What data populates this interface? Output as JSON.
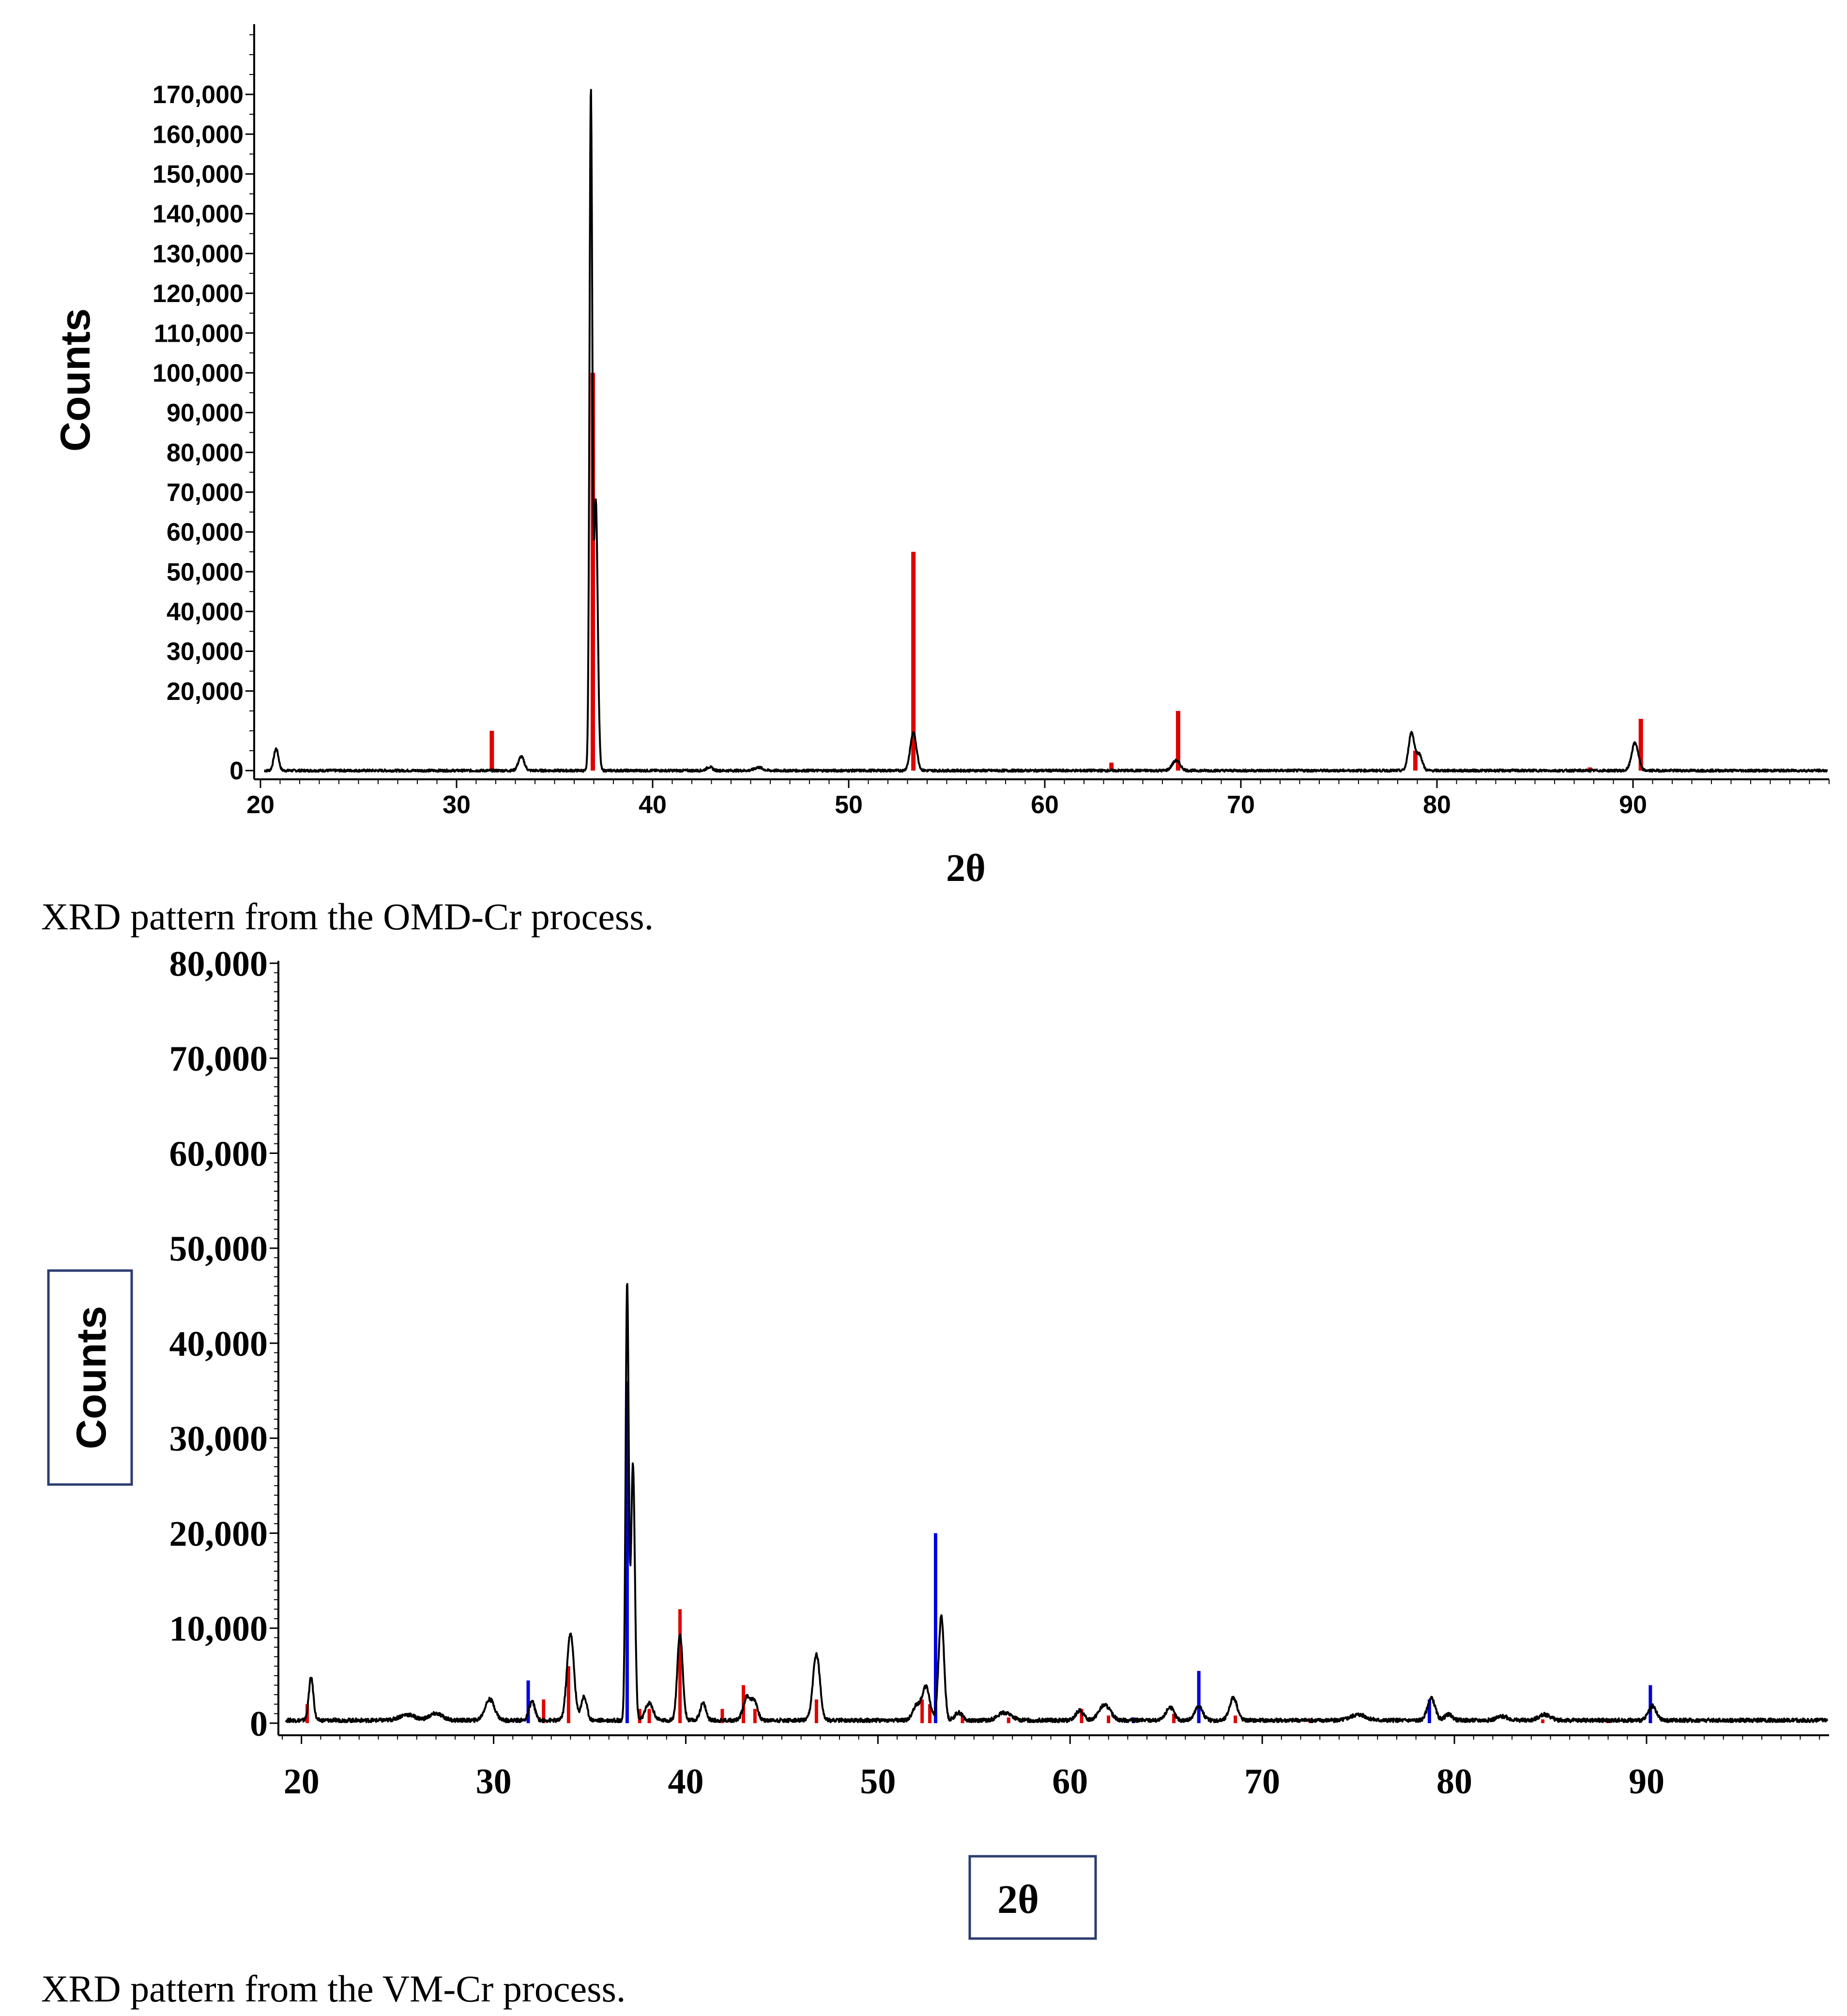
{
  "chart_data": [
    {
      "type": "line",
      "caption": "XRD pattern from the OMD-Cr process.",
      "xlabel": "2θ",
      "ylabel": "Counts",
      "xlim": [
        20,
        100
      ],
      "ylim": [
        -5000,
        180000
      ],
      "x_ticks": [
        "20",
        "30",
        "40",
        "50",
        "60",
        "70",
        "80",
        "90"
      ],
      "y_ticks": [
        "0",
        "20,000",
        "30,000",
        "40,000",
        "50,000",
        "60,000",
        "70,000",
        "80,000",
        "90,000",
        "100,000",
        "110,000",
        "120,000",
        "130,000",
        "140,000",
        "150,000",
        "160,000",
        "170,000"
      ],
      "y_tick_values": [
        0,
        20000,
        30000,
        40000,
        50000,
        60000,
        70000,
        80000,
        90000,
        100000,
        110000,
        120000,
        130000,
        140000,
        150000,
        160000,
        170000
      ],
      "colors": {
        "pattern": "#000000",
        "ref_red": "#e00000"
      },
      "baseline": 0,
      "peaks": [
        {
          "x": 20.8,
          "y": 5500,
          "w": 0.12
        },
        {
          "x": 33.3,
          "y": 3500,
          "w": 0.15
        },
        {
          "x": 36.85,
          "y": 169000,
          "w": 0.07
        },
        {
          "x": 37.1,
          "y": 68000,
          "w": 0.1
        },
        {
          "x": 42.9,
          "y": 900,
          "w": 0.15
        },
        {
          "x": 45.4,
          "y": 800,
          "w": 0.2
        },
        {
          "x": 53.3,
          "y": 9500,
          "w": 0.16
        },
        {
          "x": 66.7,
          "y": 2500,
          "w": 0.2
        },
        {
          "x": 78.7,
          "y": 9500,
          "w": 0.15
        },
        {
          "x": 79.1,
          "y": 4000,
          "w": 0.15
        },
        {
          "x": 90.1,
          "y": 7000,
          "w": 0.17
        }
      ],
      "reference_lines": [
        {
          "color": "red",
          "x": 31.8,
          "y": 10000
        },
        {
          "x": 36.95,
          "y": 100000,
          "color": "red"
        },
        {
          "color": "red",
          "x": 53.3,
          "y": 55000
        },
        {
          "color": "red",
          "x": 63.4,
          "y": 2000
        },
        {
          "color": "red",
          "x": 66.8,
          "y": 15000
        },
        {
          "color": "red",
          "x": 78.9,
          "y": 5000
        },
        {
          "color": "red",
          "x": 87.8,
          "y": 800
        },
        {
          "color": "red",
          "x": 90.4,
          "y": 13000
        }
      ]
    },
    {
      "type": "line",
      "caption": "XRD pattern from the VM-Cr process.",
      "xlabel": "2θ",
      "ylabel": "Counts",
      "xlim": [
        19,
        99.5
      ],
      "ylim": [
        -1000,
        80000
      ],
      "x_ticks": [
        "20",
        "30",
        "40",
        "50",
        "60",
        "70",
        "80",
        "90"
      ],
      "y_ticks": [
        "0",
        "10,000",
        "20,000",
        "30,000",
        "40,000",
        "50,000",
        "60,000",
        "70,000",
        "80,000"
      ],
      "y_tick_values": [
        0,
        10000,
        20000,
        30000,
        40000,
        50000,
        60000,
        70000,
        80000
      ],
      "colors": {
        "pattern": "#000000",
        "ref_red": "#e00000",
        "ref_blue": "#0000dd"
      },
      "baseline": 300,
      "peaks": [
        {
          "x": 20.5,
          "y": 4500,
          "w": 0.12
        },
        {
          "x": 25.5,
          "y": 600,
          "w": 0.4
        },
        {
          "x": 27.0,
          "y": 700,
          "w": 0.35
        },
        {
          "x": 29.8,
          "y": 2200,
          "w": 0.25
        },
        {
          "x": 32.0,
          "y": 2000,
          "w": 0.15
        },
        {
          "x": 34.0,
          "y": 9200,
          "w": 0.18
        },
        {
          "x": 34.7,
          "y": 2500,
          "w": 0.15
        },
        {
          "x": 36.95,
          "y": 46000,
          "w": 0.08
        },
        {
          "x": 37.25,
          "y": 27000,
          "w": 0.1
        },
        {
          "x": 38.1,
          "y": 1800,
          "w": 0.2
        },
        {
          "x": 39.7,
          "y": 9000,
          "w": 0.14
        },
        {
          "x": 40.9,
          "y": 1800,
          "w": 0.15
        },
        {
          "x": 43.2,
          "y": 2500,
          "w": 0.2
        },
        {
          "x": 43.6,
          "y": 1800,
          "w": 0.15
        },
        {
          "x": 46.8,
          "y": 7000,
          "w": 0.18
        },
        {
          "x": 52.0,
          "y": 1500,
          "w": 0.2
        },
        {
          "x": 52.5,
          "y": 3500,
          "w": 0.2
        },
        {
          "x": 53.3,
          "y": 11000,
          "w": 0.14
        },
        {
          "x": 54.2,
          "y": 800,
          "w": 0.2
        },
        {
          "x": 56.6,
          "y": 800,
          "w": 0.35
        },
        {
          "x": 60.5,
          "y": 1000,
          "w": 0.2
        },
        {
          "x": 61.8,
          "y": 1600,
          "w": 0.3
        },
        {
          "x": 65.2,
          "y": 1400,
          "w": 0.2
        },
        {
          "x": 66.7,
          "y": 1500,
          "w": 0.2
        },
        {
          "x": 68.5,
          "y": 2400,
          "w": 0.2
        },
        {
          "x": 75.0,
          "y": 600,
          "w": 0.4
        },
        {
          "x": 78.8,
          "y": 2300,
          "w": 0.2
        },
        {
          "x": 79.7,
          "y": 600,
          "w": 0.2
        },
        {
          "x": 82.5,
          "y": 400,
          "w": 0.3
        },
        {
          "x": 84.7,
          "y": 600,
          "w": 0.3
        },
        {
          "x": 90.3,
          "y": 1500,
          "w": 0.2
        }
      ],
      "reference_lines": [
        {
          "color": "red",
          "x": 20.3,
          "y": 2000
        },
        {
          "color": "red",
          "x": 32.6,
          "y": 2500
        },
        {
          "color": "red",
          "x": 33.9,
          "y": 6000
        },
        {
          "color": "red",
          "x": 37.6,
          "y": 1500
        },
        {
          "color": "red",
          "x": 38.1,
          "y": 1500
        },
        {
          "color": "red",
          "x": 39.7,
          "y": 12000
        },
        {
          "color": "red",
          "x": 41.9,
          "y": 1500
        },
        {
          "color": "red",
          "x": 43.0,
          "y": 4000
        },
        {
          "color": "red",
          "x": 43.6,
          "y": 1500
        },
        {
          "color": "red",
          "x": 46.8,
          "y": 2500
        },
        {
          "color": "red",
          "x": 52.3,
          "y": 2500
        },
        {
          "color": "red",
          "x": 52.7,
          "y": 2000
        },
        {
          "color": "red",
          "x": 54.4,
          "y": 800
        },
        {
          "color": "red",
          "x": 56.8,
          "y": 600
        },
        {
          "color": "red",
          "x": 60.6,
          "y": 1500
        },
        {
          "color": "red",
          "x": 62.0,
          "y": 800
        },
        {
          "color": "red",
          "x": 65.4,
          "y": 1000
        },
        {
          "color": "red",
          "x": 68.6,
          "y": 800
        },
        {
          "color": "red",
          "x": 72.5,
          "y": 500
        },
        {
          "color": "red",
          "x": 84.6,
          "y": 400
        },
        {
          "color": "red",
          "x": 88.0,
          "y": 300
        },
        {
          "color": "blue",
          "x": 31.8,
          "y": 4500
        },
        {
          "color": "blue",
          "x": 36.95,
          "y": 36000
        },
        {
          "color": "blue",
          "x": 53.0,
          "y": 20000
        },
        {
          "color": "blue",
          "x": 63.3,
          "y": 600
        },
        {
          "color": "blue",
          "x": 66.7,
          "y": 5500
        },
        {
          "color": "blue",
          "x": 78.7,
          "y": 2500
        },
        {
          "color": "blue",
          "x": 90.2,
          "y": 4000
        }
      ]
    }
  ]
}
